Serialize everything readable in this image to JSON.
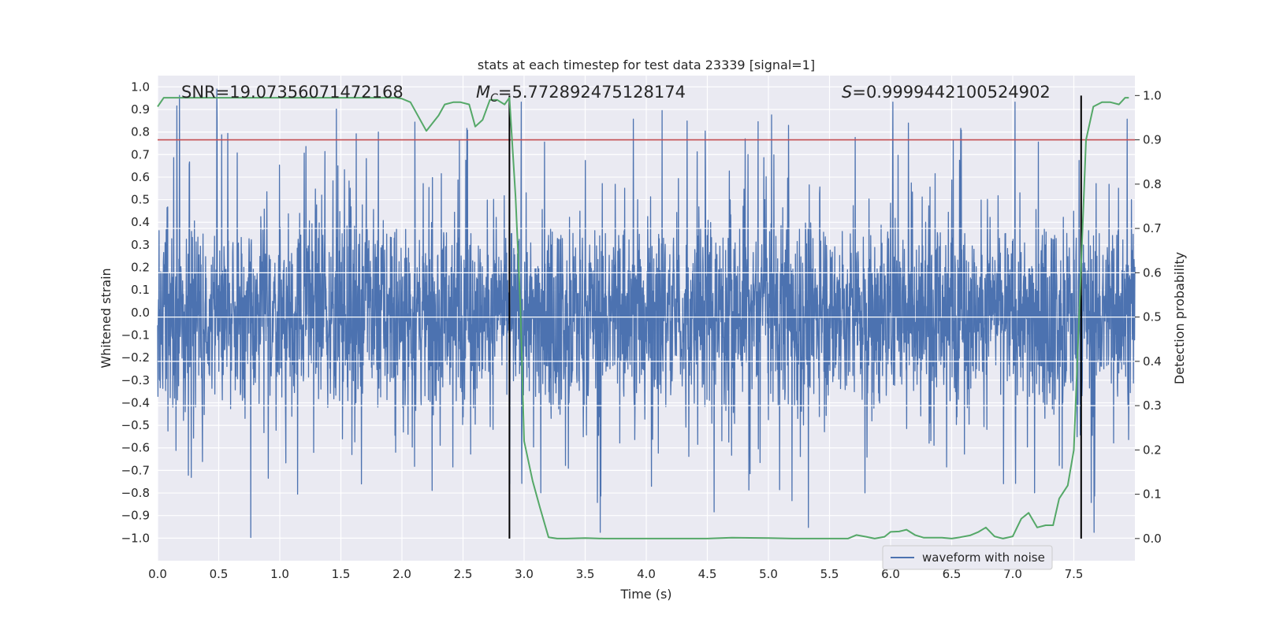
{
  "chart_data": {
    "type": "line",
    "title": "stats at each timestep for test data 23339 [signal=1]",
    "xlabel": "Time (s)",
    "ylabel": "Whitened strain",
    "y2label": "Detection probability",
    "xlim": [
      0.0,
      8.0
    ],
    "ylim": [
      -1.1,
      1.05
    ],
    "y2lim": [
      -0.05,
      1.045
    ],
    "grid": true,
    "x_ticks": [
      "0.0",
      "0.5",
      "1.0",
      "1.5",
      "2.0",
      "2.5",
      "3.0",
      "3.5",
      "4.0",
      "4.5",
      "5.0",
      "5.5",
      "6.0",
      "6.5",
      "7.0",
      "7.5"
    ],
    "y_ticks": [
      "1.0",
      "0.9",
      "0.8",
      "0.7",
      "0.6",
      "0.5",
      "0.4",
      "0.3",
      "0.2",
      "0.1",
      "0.0",
      "−0.1",
      "−0.2",
      "−0.3",
      "−0.4",
      "−0.5",
      "−0.6",
      "−0.7",
      "−0.8",
      "−0.9",
      "−1.0"
    ],
    "y2_ticks": [
      "1.0",
      "0.9",
      "0.8",
      "0.7",
      "0.6",
      "0.5",
      "0.4",
      "0.3",
      "0.2",
      "0.1",
      "0.0"
    ],
    "annotations": {
      "snr": "SNR=19.07356071472168",
      "mc_symbol": "M",
      "mc_sub": "C",
      "mc_value": "=5.772892475128174",
      "s_symbol": "S",
      "s_value": "=0.9999442100524902"
    },
    "threshold": {
      "value": 0.9,
      "axis": "right",
      "color": "#c44e52"
    },
    "vertical_lines": [
      2.88,
      7.56
    ],
    "legend": {
      "position": "lower-right",
      "entries": [
        "waveform with noise"
      ]
    },
    "series": [
      {
        "name": "waveform with noise",
        "axis": "left",
        "color": "#4c72b0",
        "kind": "dense-noise",
        "duration": 8.0,
        "envelope_abs": 0.55,
        "peak_abs": 1.0
      },
      {
        "name": "detection probability",
        "axis": "right",
        "color": "#55a868",
        "x": [
          0.0,
          0.05,
          0.1,
          0.5,
          1.0,
          1.5,
          1.8,
          1.95,
          2.0,
          2.07,
          2.2,
          2.3,
          2.35,
          2.42,
          2.48,
          2.55,
          2.6,
          2.66,
          2.72,
          2.78,
          2.84,
          2.88,
          2.93,
          2.97,
          3.0,
          3.07,
          3.13,
          3.2,
          3.27,
          3.35,
          3.5,
          3.65,
          3.8,
          4.0,
          4.5,
          4.7,
          5.0,
          5.2,
          5.5,
          5.65,
          5.72,
          5.8,
          5.87,
          5.95,
          6.0,
          6.07,
          6.13,
          6.2,
          6.27,
          6.35,
          6.42,
          6.5,
          6.57,
          6.65,
          6.72,
          6.78,
          6.85,
          6.92,
          7.0,
          7.07,
          7.13,
          7.2,
          7.27,
          7.33,
          7.38,
          7.45,
          7.5,
          7.55,
          7.6,
          7.66,
          7.73,
          7.8,
          7.87,
          7.92,
          7.95
        ],
        "y": [
          0.975,
          0.995,
          0.995,
          0.995,
          0.995,
          0.995,
          0.995,
          0.995,
          0.993,
          0.985,
          0.92,
          0.955,
          0.98,
          0.985,
          0.985,
          0.98,
          0.93,
          0.945,
          0.99,
          0.99,
          0.98,
          0.995,
          0.77,
          0.52,
          0.22,
          0.13,
          0.07,
          0.003,
          0.0,
          0.0,
          0.001,
          0.0,
          0.0,
          0.0,
          0.0,
          0.002,
          0.001,
          0.0,
          0.0,
          0.0,
          0.008,
          0.004,
          0.0,
          0.004,
          0.015,
          0.016,
          0.02,
          0.008,
          0.002,
          0.002,
          0.002,
          0.0,
          0.003,
          0.007,
          0.015,
          0.025,
          0.005,
          0.0,
          0.005,
          0.045,
          0.058,
          0.025,
          0.03,
          0.03,
          0.09,
          0.12,
          0.2,
          0.55,
          0.9,
          0.975,
          0.985,
          0.985,
          0.98,
          0.995,
          0.995
        ]
      }
    ]
  }
}
